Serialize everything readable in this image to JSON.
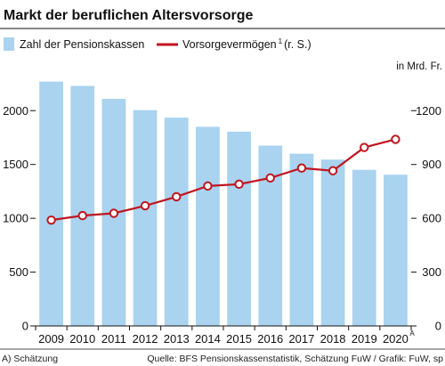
{
  "chart_data": {
    "type": "bar+line",
    "title": "Markt der beruflichen Altersvorsorge",
    "categories": [
      "2009",
      "2010",
      "2011",
      "2012",
      "2013",
      "2014",
      "2015",
      "2016",
      "2017",
      "2018",
      "2019",
      "2020"
    ],
    "category_superscripts": {
      "2020": "A"
    },
    "series": [
      {
        "name": "Zahl der Pensionskassen",
        "type": "bar",
        "axis": "left",
        "color": "#a9d3ef",
        "values": [
          2270,
          2230,
          2110,
          2005,
          1935,
          1850,
          1805,
          1675,
          1600,
          1545,
          1450,
          1405
        ]
      },
      {
        "name": "Vorsorgevermögen",
        "name_superscript": "1",
        "name_suffix": "(r. S.)",
        "type": "line",
        "axis": "right",
        "color": "#c0161f",
        "values": [
          590,
          615,
          628,
          670,
          720,
          780,
          790,
          825,
          880,
          865,
          995,
          1040
        ]
      }
    ],
    "left_axis": {
      "ylim": [
        0,
        2300
      ],
      "ticks": [
        0,
        500,
        1000,
        1500,
        2000
      ]
    },
    "right_axis": {
      "label": "in Mrd. Fr.",
      "ylim": [
        0,
        1380
      ],
      "ticks": [
        0,
        300,
        600,
        900,
        1200
      ]
    },
    "legend": "top",
    "grid": false
  },
  "footnote_left": "A) Schätzung",
  "source": "Quelle: BFS Pensionskassenstatistik, Schätzung FuW / Grafik: FuW, sp"
}
